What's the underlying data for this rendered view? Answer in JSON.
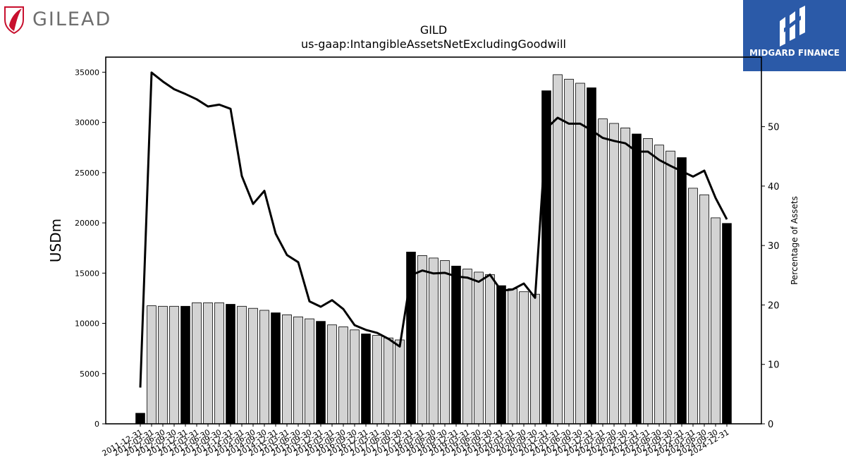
{
  "header": {
    "left_logo_text": "GILEAD",
    "right_logo_text": "MIDGARD FINANCE",
    "brand_color": "#2b5aa8",
    "left_logo_color": "#c8102e"
  },
  "chart_data": {
    "type": "bar",
    "title": "GILD",
    "subtitle": "us-gaap:IntangibleAssetsNetExcludingGoodwill",
    "ylabel": "USDm",
    "y2label": "Percentage of Assets",
    "ylim": [
      0,
      36500
    ],
    "y2lim": [
      0,
      61.7
    ],
    "yticks": [
      0,
      5000,
      10000,
      15000,
      20000,
      25000,
      30000,
      35000
    ],
    "y2ticks": [
      0,
      10,
      20,
      30,
      40,
      50
    ],
    "grid": false,
    "bar_colors": {
      "annual": "#000000",
      "quarterly": "#d3d3d3"
    },
    "categories": [
      "2011-12-31",
      "2012-03-31",
      "2012-06-30",
      "2012-09-30",
      "2012-12-31",
      "2013-03-31",
      "2013-06-30",
      "2013-09-30",
      "2013-12-31",
      "2014-03-31",
      "2014-06-30",
      "2014-09-30",
      "2014-12-31",
      "2015-03-31",
      "2015-06-30",
      "2015-09-30",
      "2015-12-31",
      "2016-03-31",
      "2016-06-30",
      "2016-09-30",
      "2016-12-31",
      "2017-03-31",
      "2017-06-30",
      "2017-09-30",
      "2017-12-31",
      "2018-03-31",
      "2018-06-30",
      "2018-09-30",
      "2018-12-31",
      "2019-03-31",
      "2019-06-30",
      "2019-09-30",
      "2019-12-31",
      "2020-03-31",
      "2020-06-30",
      "2020-09-30",
      "2020-12-31",
      "2021-03-31",
      "2021-06-30",
      "2021-09-30",
      "2021-12-31",
      "2022-03-31",
      "2022-06-30",
      "2022-09-30",
      "2022-12-31",
      "2023-03-31",
      "2023-06-30",
      "2023-09-30",
      "2023-12-31",
      "2024-03-31",
      "2024-06-30",
      "2024-09-30",
      "2024-12-31"
    ],
    "visible_tick_labels": [
      "2011-12-31",
      "2012-03-31",
      "2012-06-30",
      "2012-09-30",
      "2012-12-31",
      "2013-03-31",
      "2013-06-30",
      "2013-09-30",
      "2013-12-31",
      "2014-03-31",
      "2014-06-30",
      "2014-09-30",
      "2014-12-31",
      "2015-03-31",
      "2015-06-30",
      "2015-09-30",
      "2015-12-31",
      "2016-03-31",
      "2016-06-30",
      "2016-09-30",
      "2016-12-31",
      "2017-03-31",
      "2017-06-30",
      "2017-09-30",
      "2017-12-31",
      "2018-03-31",
      "2018-06-30",
      "2018-09-30",
      "2018-12-31",
      "2019-03-31",
      "2019-06-30",
      "2019-09-30",
      "2019-12-31",
      "2020-03-31",
      "2020-06-30",
      "2020-09-30",
      "2020-12-31",
      "2021-03-31",
      "2021-06-30",
      "2021-09-30",
      "2021-12-31",
      "2022-03-31",
      "2022-06-30",
      "2022-09-30",
      "2022-12-31",
      "2023-03-31",
      "2023-06-30",
      "2023-09-30",
      "2023-12-31",
      "2024-03-31",
      "2024-06-30",
      "2024-09-30",
      "2024-12-31"
    ],
    "annual": [
      true,
      false,
      false,
      false,
      true,
      false,
      false,
      false,
      true,
      false,
      false,
      false,
      true,
      false,
      false,
      false,
      true,
      false,
      false,
      false,
      true,
      false,
      false,
      false,
      true,
      false,
      false,
      false,
      true,
      false,
      false,
      false,
      true,
      false,
      false,
      false,
      true,
      false,
      false,
      false,
      true,
      false,
      false,
      false,
      true,
      false,
      false,
      false,
      true,
      false,
      false,
      false,
      true
    ],
    "series": [
      {
        "values": [
          1050,
          11750,
          11700,
          11700,
          11700,
          12050,
          12050,
          12050,
          11900,
          11700,
          11500,
          11300,
          11050,
          10850,
          10650,
          10450,
          10200,
          9850,
          9650,
          9350,
          8950,
          8800,
          8550,
          8350,
          17100,
          16750,
          16500,
          16250,
          15700,
          15400,
          15100,
          14850,
          13750,
          13450,
          13150,
          12900,
          33150,
          34750,
          34300,
          33900,
          33450,
          30350,
          29900,
          29450,
          28850,
          28400,
          27750,
          27150,
          26500,
          23450,
          22800,
          20500,
          19950
        ]
      },
      {
        "axis": "y2",
        "values": [
          6.1,
          59.1,
          57.6,
          56.3,
          55.5,
          54.6,
          53.4,
          53.7,
          53.0,
          41.7,
          37.0,
          39.2,
          32.0,
          28.4,
          27.2,
          20.6,
          19.7,
          20.8,
          19.3,
          16.6,
          15.8,
          15.3,
          14.3,
          13.0,
          25.0,
          25.8,
          25.3,
          25.4,
          24.8,
          24.6,
          23.9,
          25.1,
          22.4,
          22.6,
          23.6,
          21.2,
          49.7,
          51.5,
          50.5,
          50.5,
          49.4,
          48.1,
          47.6,
          47.2,
          45.8,
          45.8,
          44.4,
          43.4,
          42.5,
          41.6,
          42.6,
          38.0,
          34.4
        ]
      }
    ]
  }
}
